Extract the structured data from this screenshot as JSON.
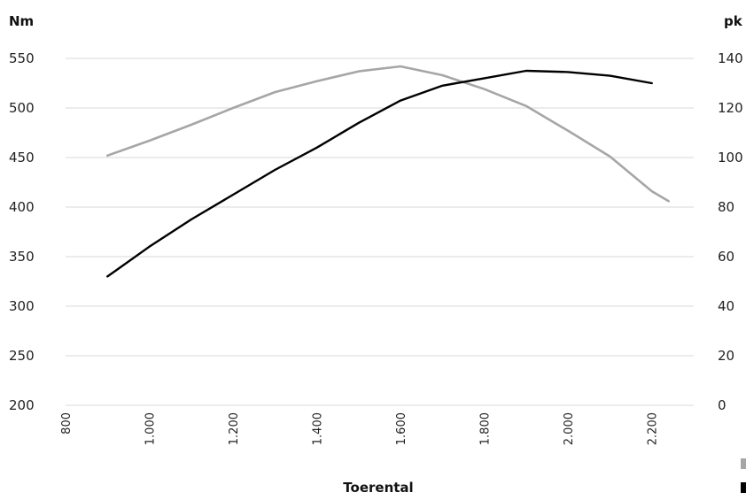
{
  "chart_data": {
    "type": "line",
    "xlabel": "Toerental",
    "x_ticks": [
      "800",
      "1.000",
      "1.200",
      "1.400",
      "1.600",
      "1.800",
      "2.000",
      "2.200"
    ],
    "xlim": [
      800,
      2300
    ],
    "y_left": {
      "unit": "Nm",
      "ylim": [
        200,
        550
      ],
      "ticks": [
        "200",
        "250",
        "300",
        "350",
        "400",
        "450",
        "500",
        "550"
      ]
    },
    "y_right": {
      "unit": "pk",
      "ylim": [
        0,
        140
      ],
      "ticks": [
        "0",
        "20",
        "40",
        "60",
        "80",
        "100",
        "120",
        "140"
      ]
    },
    "grid": true,
    "series": [
      {
        "axis": "left",
        "color": "#a6a6a6",
        "x": [
          900,
          1000,
          1100,
          1200,
          1300,
          1400,
          1500,
          1600,
          1700,
          1800,
          1900,
          2000,
          2100,
          2200,
          2240
        ],
        "y": [
          452,
          467,
          483,
          500,
          516,
          527,
          537,
          542,
          533,
          519,
          502,
          477,
          451,
          416,
          406
        ]
      },
      {
        "axis": "right",
        "color": "#000000",
        "x": [
          900,
          1000,
          1100,
          1200,
          1300,
          1400,
          1500,
          1600,
          1700,
          1800,
          1900,
          2000,
          2100,
          2200
        ],
        "y": [
          52,
          64,
          75,
          85,
          95,
          104,
          114,
          123,
          129,
          132,
          135,
          134.5,
          133,
          130
        ]
      }
    ],
    "legend": {
      "placement": "bottom-right",
      "swatch_colors": [
        "#a6a6a6",
        "#000000"
      ]
    }
  }
}
